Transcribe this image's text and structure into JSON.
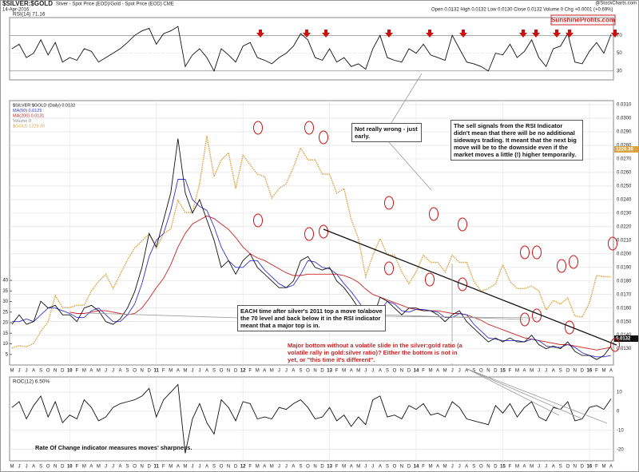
{
  "header": {
    "symbol": "$SILVER:$GOLD",
    "description": "Silver - Spot Price (EOD)/Gold - Spot Price (EOD) CME",
    "date": "14-Apr-2016",
    "quote": "Open 0.0132 High 0.0132 Low 0.0130 Close 0.0132 Volume 0 Chg +0.0001 (+0.69%)",
    "source": "@StockCharts.com",
    "brand": "SunshineProfits.com"
  },
  "chart_data": [
    {
      "type": "line",
      "label": "RSI(14) 71.16",
      "ylim": [
        20,
        90
      ],
      "yticks": [
        30,
        50,
        70
      ],
      "grid": true,
      "series": [
        {
          "name": "RSI(14)",
          "color": "#111111",
          "values": [
            55,
            60,
            45,
            50,
            65,
            48,
            62,
            40,
            45,
            42,
            55,
            52,
            40,
            45,
            50,
            55,
            62,
            70,
            75,
            78,
            60,
            72,
            75,
            80,
            35,
            48,
            55,
            45,
            30,
            55,
            48,
            40,
            58,
            62,
            45,
            42,
            38,
            45,
            50,
            58,
            72,
            65,
            45,
            42,
            55,
            40,
            45,
            35,
            38,
            32,
            55,
            70,
            45,
            42,
            40,
            55,
            50,
            60,
            48,
            45,
            42,
            70,
            55,
            40,
            38,
            35,
            30,
            50,
            48,
            60,
            45,
            52,
            65,
            45,
            35,
            55,
            58,
            72,
            40,
            38,
            52,
            62,
            50,
            71.16
          ]
        }
      ]
    },
    {
      "type": "line",
      "ylim": [
        0.0118,
        0.0313
      ],
      "y2lim": [
        859,
        1969
      ],
      "vlim": [
        0,
        45
      ],
      "vticks": [
        5,
        10,
        15,
        20,
        25,
        30,
        35,
        40
      ],
      "volume_label": "Volume 0",
      "grid": true,
      "right_labels": [
        "0.0132",
        "1229.30"
      ],
      "yticks": [
        {
          "value": 0.013,
          "label": "0.0130"
        },
        {
          "value": 0.014,
          "label": "0.0140"
        },
        {
          "value": 0.015,
          "label": "0.0150"
        },
        {
          "value": 0.016,
          "label": "0.0160"
        },
        {
          "value": 0.017,
          "label": "0.0170"
        },
        {
          "value": 0.018,
          "label": "0.0180"
        },
        {
          "value": 0.019,
          "label": "0.0190"
        },
        {
          "value": 0.02,
          "label": "0.0200"
        },
        {
          "value": 0.021,
          "label": "0.0210"
        },
        {
          "value": 0.022,
          "label": "0.0220"
        },
        {
          "value": 0.023,
          "label": "0.0230"
        },
        {
          "value": 0.024,
          "label": "0.0240"
        },
        {
          "value": 0.025,
          "label": "0.0250"
        },
        {
          "value": 0.026,
          "label": "0.0260"
        },
        {
          "value": 0.027,
          "label": "0.0270"
        },
        {
          "value": 0.028,
          "label": "0.0280"
        },
        {
          "value": 0.029,
          "label": "0.0290"
        },
        {
          "value": 0.03,
          "label": "0.0300"
        },
        {
          "value": 0.031,
          "label": "0.0310"
        }
      ],
      "categories": [
        "M",
        "J",
        "J",
        "A",
        "S",
        "O",
        "N",
        "D",
        "10",
        "F",
        "M",
        "A",
        "M",
        "J",
        "J",
        "A",
        "S",
        "O",
        "N",
        "D",
        "11",
        "F",
        "M",
        "A",
        "M",
        "J",
        "J",
        "A",
        "S",
        "O",
        "N",
        "D",
        "12",
        "F",
        "M",
        "A",
        "M",
        "J",
        "J",
        "A",
        "S",
        "O",
        "N",
        "D",
        "13",
        "F",
        "M",
        "A",
        "M",
        "J",
        "J",
        "A",
        "S",
        "O",
        "N",
        "D",
        "14",
        "F",
        "M",
        "A",
        "M",
        "J",
        "J",
        "A",
        "S",
        "O",
        "N",
        "D",
        "15",
        "F",
        "M",
        "A",
        "M",
        "J",
        "J",
        "A",
        "S",
        "O",
        "N",
        "D",
        "16",
        "F",
        "M",
        "A"
      ],
      "series": [
        {
          "name": "$GOLD 1229.30",
          "color": "#d9a441",
          "axis": "y2",
          "values": [
            930,
            940,
            935,
            950,
            1000,
            1040,
            1150,
            1100,
            1100,
            1110,
            1110,
            1170,
            1210,
            1240,
            1180,
            1240,
            1300,
            1350,
            1380,
            1410,
            1350,
            1410,
            1430,
            1550,
            1500,
            1500,
            1620,
            1820,
            1650,
            1720,
            1750,
            1600,
            1740,
            1700,
            1660,
            1650,
            1560,
            1600,
            1620,
            1690,
            1770,
            1720,
            1720,
            1660,
            1660,
            1580,
            1600,
            1470,
            1390,
            1230,
            1320,
            1390,
            1320,
            1320,
            1250,
            1200,
            1250,
            1320,
            1290,
            1290,
            1250,
            1320,
            1290,
            1290,
            1210,
            1170,
            1180,
            1200,
            1280,
            1210,
            1180,
            1180,
            1190,
            1170,
            1090,
            1130,
            1115,
            1140,
            1065,
            1060,
            1120,
            1235,
            1230,
            1229.3
          ]
        },
        {
          "name": "MA(200) 0.0131",
          "color": "#cc2222",
          "values": [
            null,
            null,
            null,
            null,
            null,
            null,
            null,
            null,
            0.0157,
            0.0156,
            0.0156,
            0.0157,
            0.0158,
            0.0158,
            0.0157,
            0.0156,
            0.0155,
            0.0156,
            0.016,
            0.0167,
            0.0175,
            0.0182,
            0.0192,
            0.0205,
            0.0215,
            0.0222,
            0.0225,
            0.0228,
            0.0226,
            0.0222,
            0.0218,
            0.0212,
            0.0205,
            0.02,
            0.0197,
            0.0195,
            0.0192,
            0.0189,
            0.0186,
            0.0184,
            0.0184,
            0.0185,
            0.0185,
            0.0185,
            0.0185,
            0.0185,
            0.0184,
            0.0182,
            0.0179,
            0.0174,
            0.017,
            0.0168,
            0.0166,
            0.0164,
            0.0162,
            0.016,
            0.0159,
            0.0158,
            0.0158,
            0.0158,
            0.0157,
            0.0156,
            0.0156,
            0.0155,
            0.0153,
            0.0151,
            0.0148,
            0.0146,
            0.0144,
            0.0142,
            0.014,
            0.0138,
            0.0137,
            0.0136,
            0.0135,
            0.0134,
            0.0133,
            0.0133,
            0.0132,
            0.0131,
            0.013,
            0.0129,
            0.013,
            0.0131
          ]
        },
        {
          "name": "MA(50) 0.0125",
          "color": "#3333cc",
          "values": [
            0.015,
            0.015,
            0.0152,
            0.015,
            0.0155,
            0.016,
            0.016,
            0.0158,
            0.0156,
            0.0153,
            0.0153,
            0.0158,
            0.016,
            0.0155,
            0.015,
            0.015,
            0.0155,
            0.0163,
            0.0178,
            0.0198,
            0.021,
            0.0215,
            0.0232,
            0.0255,
            0.0255,
            0.024,
            0.0235,
            0.0232,
            0.022,
            0.0205,
            0.0195,
            0.019,
            0.019,
            0.0195,
            0.0195,
            0.0188,
            0.0183,
            0.0178,
            0.0175,
            0.0177,
            0.0185,
            0.0195,
            0.0194,
            0.019,
            0.0189,
            0.0185,
            0.0178,
            0.0172,
            0.0165,
            0.0157,
            0.0152,
            0.0158,
            0.0165,
            0.0163,
            0.0158,
            0.0157,
            0.0159,
            0.0159,
            0.0158,
            0.0157,
            0.0153,
            0.0153,
            0.0156,
            0.0155,
            0.0148,
            0.0143,
            0.0138,
            0.0137,
            0.0136,
            0.0136,
            0.0136,
            0.0135,
            0.0137,
            0.0136,
            0.0132,
            0.0131,
            0.0131,
            0.0133,
            0.0131,
            0.0127,
            0.0125,
            0.0124,
            0.0124,
            0.0125
          ]
        },
        {
          "name": "$SILVER:$GOLD (Daily) 0.0132",
          "color": "#111111",
          "values": [
            0.0148,
            0.0155,
            0.0148,
            0.015,
            0.0165,
            0.016,
            0.0162,
            0.0155,
            0.0155,
            0.015,
            0.016,
            0.0162,
            0.0158,
            0.015,
            0.0148,
            0.0152,
            0.016,
            0.0172,
            0.019,
            0.0215,
            0.0205,
            0.0225,
            0.0245,
            0.0285,
            0.0245,
            0.023,
            0.024,
            0.0225,
            0.021,
            0.019,
            0.0195,
            0.0185,
            0.0195,
            0.02,
            0.019,
            0.0185,
            0.018,
            0.0175,
            0.0175,
            0.018,
            0.0195,
            0.0198,
            0.019,
            0.0188,
            0.019,
            0.018,
            0.0175,
            0.0168,
            0.016,
            0.015,
            0.0152,
            0.0168,
            0.0165,
            0.016,
            0.0155,
            0.016,
            0.016,
            0.0158,
            0.0158,
            0.0155,
            0.015,
            0.0155,
            0.0158,
            0.015,
            0.0145,
            0.014,
            0.0135,
            0.0138,
            0.0135,
            0.0138,
            0.0135,
            0.0135,
            0.014,
            0.0133,
            0.013,
            0.0132,
            0.013,
            0.0135,
            0.0128,
            0.0125,
            0.0125,
            0.0122,
            0.0125,
            0.0132
          ]
        }
      ]
    },
    {
      "type": "line",
      "label": "ROC(12) 6.50%",
      "ylim": [
        -26,
        18
      ],
      "yticks": [
        -20,
        -10,
        0,
        10
      ],
      "grid": true,
      "categories": [
        "M",
        "J",
        "J",
        "A",
        "S",
        "O",
        "N",
        "D",
        "10",
        "F",
        "M",
        "A",
        "M",
        "J",
        "J",
        "A",
        "S",
        "O",
        "N",
        "D",
        "11",
        "F",
        "M",
        "A",
        "M",
        "J",
        "J",
        "A",
        "S",
        "O",
        "N",
        "D",
        "12",
        "F",
        "M",
        "A",
        "M",
        "J",
        "J",
        "A",
        "S",
        "O",
        "N",
        "D",
        "13",
        "F",
        "M",
        "A",
        "M",
        "J",
        "J",
        "A",
        "S",
        "O",
        "N",
        "D",
        "14",
        "F",
        "M",
        "A",
        "M",
        "J",
        "J",
        "A",
        "S",
        "O",
        "N",
        "D",
        "15",
        "F",
        "M",
        "A",
        "M",
        "J",
        "J",
        "A",
        "S",
        "O",
        "N",
        "D",
        "16",
        "F",
        "M",
        "A"
      ],
      "series": [
        {
          "name": "ROC(12)",
          "color": "#111111",
          "values": [
            2,
            5,
            -4,
            3,
            8,
            -3,
            5,
            -6,
            -2,
            -4,
            6,
            2,
            -5,
            -3,
            2,
            4,
            5,
            6,
            8,
            12,
            -3,
            6,
            10,
            14,
            -22,
            -4,
            4,
            -6,
            -12,
            6,
            2,
            -5,
            5,
            4,
            -4,
            -3,
            -4,
            2,
            1,
            4,
            6,
            2,
            -4,
            -3,
            2,
            -5,
            -2,
            -8,
            -3,
            -7,
            6,
            8,
            -3,
            -2,
            -4,
            3,
            1,
            4,
            -2,
            -1,
            -3,
            5,
            2,
            -4,
            -5,
            -6,
            -7,
            3,
            -1,
            4,
            -3,
            2,
            5,
            -3,
            -5,
            2,
            1,
            5,
            -5,
            -4,
            2,
            3,
            1,
            6.5
          ]
        }
      ]
    }
  ],
  "annotations": {
    "early": "Not really wrong - just early.",
    "sell": "The sell signals from the RSI Indicator didn't mean that there will be no additional sideways trading. It meant that the next big move will be to the downside even if the market moves a little (!) higher temporarily.",
    "each": "EACH time after silver's 2011 top a move to/above the 70 level and back below it in the RSI indicator meant that a major top is in.",
    "major": "Major bottom without a volatile slide in the silver:gold ratio (a volatile rally in gold:silver ratio)? Either the bottom is not in yet, or \"this time it's different\".",
    "roc": "Rate Of Change indicator measures moves' sharpness."
  }
}
